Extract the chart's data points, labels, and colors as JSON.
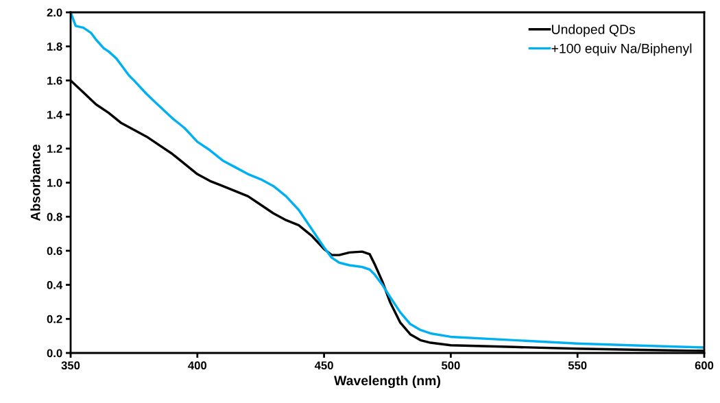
{
  "chart_data": {
    "type": "line",
    "xlabel": "Wavelength (nm)",
    "ylabel": "Absorbance",
    "xlim": [
      350,
      600
    ],
    "xticks": [
      350,
      400,
      450,
      500,
      550,
      600
    ],
    "ylim": [
      0,
      2
    ],
    "yticks": [
      {
        "value": 0,
        "label": "0.0"
      },
      {
        "value": 0.2,
        "label": "0.2"
      },
      {
        "value": 0.4,
        "label": "0.4"
      },
      {
        "value": 0.6,
        "label": "0.6"
      },
      {
        "value": 0.8,
        "label": "0.8"
      },
      {
        "value": 1.0,
        "label": "1.0"
      },
      {
        "value": 1.2,
        "label": "1.2"
      },
      {
        "value": 1.4,
        "label": "1.4"
      },
      {
        "value": 1.6,
        "label": "1.6"
      },
      {
        "value": 1.8,
        "label": "1.8"
      },
      {
        "value": 2.0,
        "label": "2.0"
      }
    ],
    "grid": false,
    "legend": "top right",
    "marker": "none",
    "line_style": "solid",
    "series": [
      {
        "name": "Undoped QDs",
        "color": "#000000",
        "x": [
          350,
          355,
          360,
          365,
          370,
          375,
          380,
          385,
          390,
          395,
          400,
          405,
          410,
          415,
          420,
          425,
          430,
          435,
          440,
          445,
          450,
          453,
          456,
          460,
          465,
          468,
          470,
          473,
          476,
          480,
          484,
          488,
          492,
          500,
          525,
          550,
          575,
          600
        ],
        "values": [
          1.6,
          1.53,
          1.46,
          1.41,
          1.35,
          1.31,
          1.27,
          1.22,
          1.17,
          1.11,
          1.05,
          1.01,
          0.98,
          0.95,
          0.92,
          0.87,
          0.82,
          0.78,
          0.75,
          0.69,
          0.61,
          0.575,
          0.575,
          0.59,
          0.595,
          0.58,
          0.52,
          0.42,
          0.3,
          0.18,
          0.11,
          0.075,
          0.06,
          0.045,
          0.035,
          0.025,
          0.018,
          0.012
        ]
      },
      {
        "name": "+100 equiv Na/Biphenyl",
        "color": "#00b0f0",
        "x": [
          350,
          352,
          355,
          358,
          360,
          363,
          365,
          368,
          370,
          373,
          375,
          380,
          385,
          390,
          395,
          400,
          405,
          410,
          415,
          420,
          425,
          430,
          435,
          440,
          445,
          450,
          453,
          456,
          460,
          465,
          468,
          470,
          473,
          476,
          480,
          484,
          488,
          492,
          500,
          525,
          550,
          575,
          600
        ],
        "values": [
          2.0,
          1.92,
          1.91,
          1.88,
          1.84,
          1.79,
          1.77,
          1.73,
          1.69,
          1.63,
          1.6,
          1.52,
          1.45,
          1.38,
          1.32,
          1.24,
          1.19,
          1.13,
          1.09,
          1.05,
          1.02,
          0.98,
          0.92,
          0.84,
          0.73,
          0.62,
          0.56,
          0.53,
          0.515,
          0.505,
          0.49,
          0.46,
          0.4,
          0.33,
          0.24,
          0.17,
          0.135,
          0.115,
          0.095,
          0.075,
          0.055,
          0.043,
          0.032
        ]
      }
    ]
  }
}
